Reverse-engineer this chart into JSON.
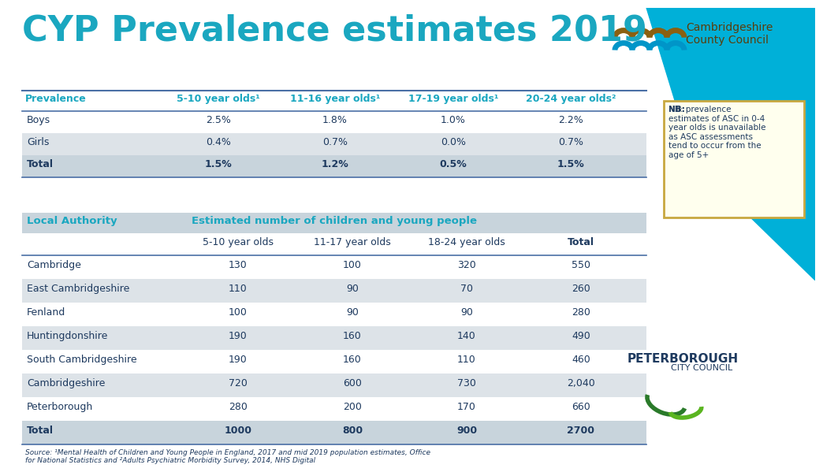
{
  "title": "CYP Prevalence estimates 2019",
  "title_color": "#1aa7c0",
  "background_color": "#ffffff",
  "table1_header": [
    "Prevalence",
    "5-10 year olds¹",
    "11-16 year olds¹",
    "17-19 year olds¹",
    "20-24 year olds²"
  ],
  "table1_rows": [
    [
      "Boys",
      "2.5%",
      "1.8%",
      "1.0%",
      "2.2%"
    ],
    [
      "Girls",
      "0.4%",
      "0.7%",
      "0.0%",
      "0.7%"
    ],
    [
      "Total",
      "1.5%",
      "1.2%",
      "0.5%",
      "1.5%"
    ]
  ],
  "table2_header1_col1": "Local Authority",
  "table2_header1_col2": "Estimated number of children and young people",
  "table2_subheaders": [
    "5-10 year olds",
    "11-17 year olds",
    "18-24 year olds",
    "Total"
  ],
  "table2_rows": [
    [
      "Cambridge",
      "130",
      "100",
      "320",
      "550"
    ],
    [
      "East Cambridgeshire",
      "110",
      "90",
      "70",
      "260"
    ],
    [
      "Fenland",
      "100",
      "90",
      "90",
      "280"
    ],
    [
      "Huntingdonshire",
      "190",
      "160",
      "140",
      "490"
    ],
    [
      "South Cambridgeshire",
      "190",
      "160",
      "110",
      "460"
    ],
    [
      "Cambridgeshire",
      "720",
      "600",
      "730",
      "2,040"
    ],
    [
      "Peterborough",
      "280",
      "200",
      "170",
      "660"
    ],
    [
      "Total",
      "1000",
      "800",
      "900",
      "2700"
    ]
  ],
  "note_text_bold": "NB:",
  "note_text_rest": " prevalence\nestimates of ASC in 0-4\nyear olds is unavailable\nas ASC assessments\ntend to occur from the\nage of 5+",
  "source_text": "Source: ¹Mental Health of Children and Young People in England, 2017 and mid 2019 population estimates, Office\nfor National Statistics and ²Adults Psychiatric Morbidity Survey, 2014, NHS Digital",
  "header_line_color": "#4a6fa5",
  "row_alt_color": "#dde3e8",
  "row_plain_color": "#ffffff",
  "total_row_color": "#c8d4dc",
  "table_header_bg": "#c8d4dc",
  "table_text_color": "#1e3a5f",
  "header_text_color": "#1aa7c0",
  "note_border_color": "#c8a840",
  "note_bg_color": "#ffffee",
  "blue_shape_color": "#00b0d8",
  "cambs_logo_brown": "#8b6010",
  "cambs_logo_blue": "#0095c8",
  "cambs_text_color": "#5a3e0a",
  "peterbor_text_color": "#1e3a5f",
  "peterbor_green": "#3a8c3a",
  "source_color": "#1e3a5f"
}
